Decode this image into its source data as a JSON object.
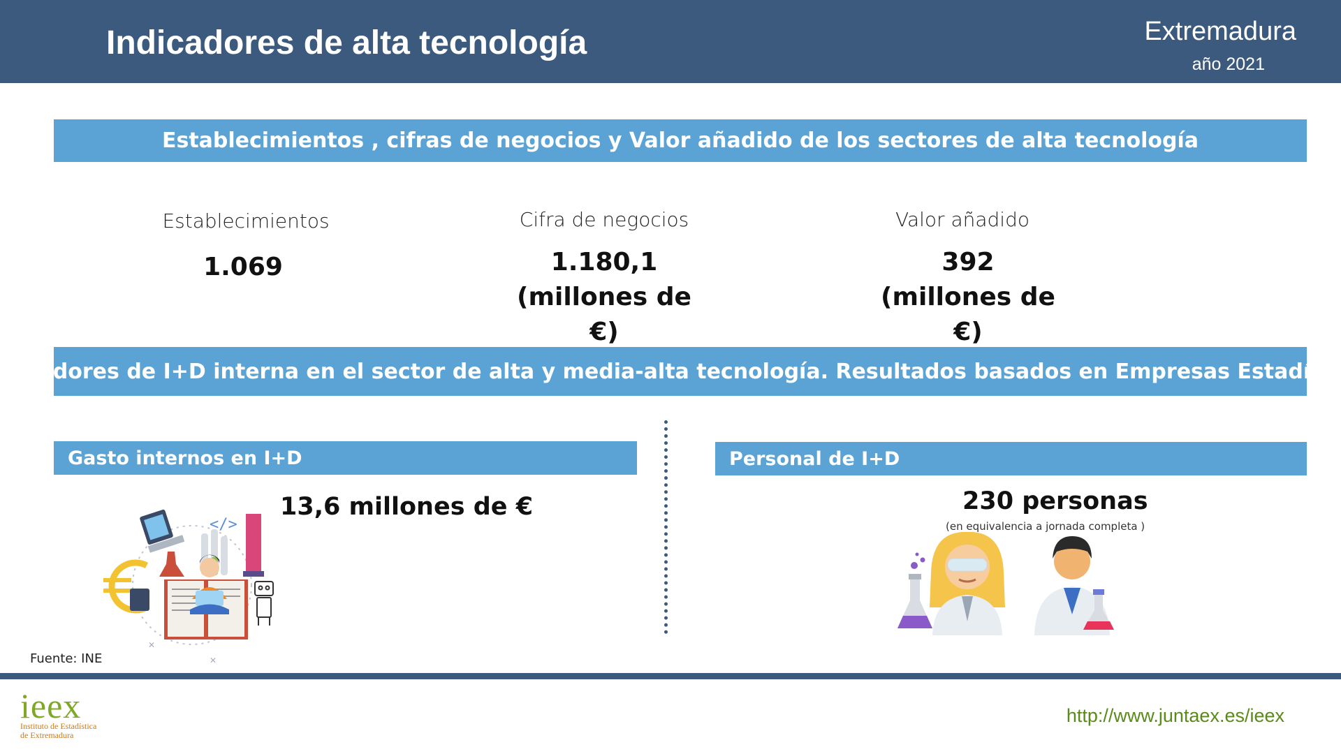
{
  "header": {
    "title": "Indicadores de alta tecnología",
    "region": "Extremadura",
    "year": "año 2021"
  },
  "section1": {
    "title": "Establecimientos ,  cifras de negocios y Valor añadido de los sectores de alta tecnología",
    "stats": [
      {
        "label": "Establecimientos",
        "value": "1.069",
        "unit": ""
      },
      {
        "label": "Cifra de negocios",
        "value": "1.180,1",
        "unit": "(millones de €)"
      },
      {
        "label": "Valor añadido",
        "value": "392",
        "unit": "(millones de €)"
      }
    ]
  },
  "section2": {
    "title": "Indicadores de I+D interna en el sector de alta y media-alta tecnología. Resultados basados en Empresas Estadísticas",
    "gasto": {
      "title": "Gasto  internos en  I+D",
      "value": "13,6 millones de €"
    },
    "personal": {
      "title": "Personal de I+D",
      "value": "230 personas",
      "note": "(en equivalencia a jornada completa )"
    }
  },
  "footer": {
    "source": "Fuente: INE",
    "url": "http://www.juntaex.es/ieex",
    "logo_main": "ieex",
    "logo_sub1": "Instituto de Estadística",
    "logo_sub2": "de Extremadura"
  },
  "colors": {
    "header": "#3c5a7d",
    "band": "#5ba3d4",
    "url": "#5a8a1a",
    "logo": "#7fa826"
  }
}
